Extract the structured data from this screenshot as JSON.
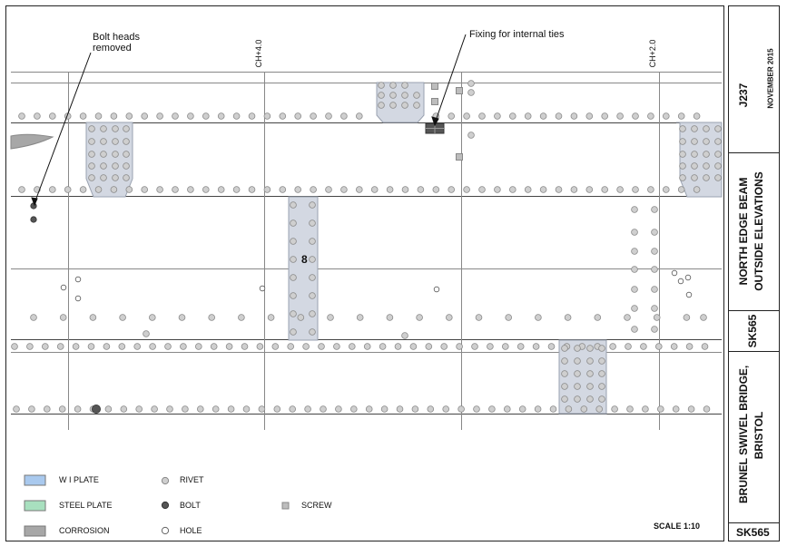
{
  "annotations": {
    "bolt_heads_line1": "Bolt heads",
    "bolt_heads_line2": "removed",
    "fixing": "Fixing for internal ties",
    "ch4": "CH+4.0",
    "ch2": "CH+2.0",
    "plate_number": "8",
    "scale": "SCALE 1:10"
  },
  "legend": {
    "wi_plate": "W I PLATE",
    "steel_plate": "STEEL PLATE",
    "corrosion": "CORROSION",
    "rivet": "RIVET",
    "bolt": "BOLT",
    "hole": "HOLE",
    "screw": "SCREW"
  },
  "title_block": {
    "drawing_no": "J237",
    "date": "NOVEMBER 2015",
    "title_line1": "NORTH EDGE BEAM",
    "title_line2": "OUTSIDE ELEVATIONS",
    "sheet": "SK565",
    "project_line1": "BRUNEL SWIVEL BRIDGE,",
    "project_line2": "BRISTOL",
    "sheet_bottom": "SK565"
  },
  "colors": {
    "wi_plate": "#a9c9ee",
    "steel_plate": "#a8e0bf",
    "corrosion": "#a7a7a7",
    "plate_fill": "#d3d8e2",
    "rivet": "#cfcfcf",
    "bolt": "#555555",
    "screw": "#bdbdbd"
  }
}
